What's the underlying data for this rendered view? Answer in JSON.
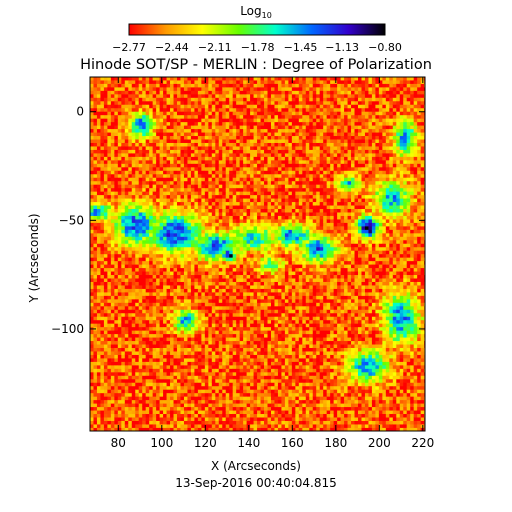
{
  "chart_data": {
    "type": "heatmap",
    "title": "Hinode SOT/SP - MERLIN : Degree of Polarization",
    "xlabel": "X (Arcseconds)",
    "ylabel": "Y (Arcseconds)",
    "footer": "13-Sep-2016 00:40:04.815",
    "xlim": [
      67,
      221
    ],
    "ylim": [
      -147,
      16
    ],
    "x_ticks": [
      80,
      100,
      120,
      140,
      160,
      180,
      200,
      220
    ],
    "x_tick_labels": [
      "80",
      "100",
      "120",
      "140",
      "160",
      "180",
      "200",
      "220"
    ],
    "y_ticks": [
      0,
      -50,
      -100
    ],
    "y_tick_labels": [
      "0",
      "-50",
      "-100"
    ],
    "colorbar": {
      "label_base": "Log",
      "label_sub": "10",
      "range": [
        -2.77,
        -0.8
      ],
      "tick_values": [
        -2.77,
        -2.44,
        -2.11,
        -1.78,
        -1.45,
        -1.13,
        -0.8
      ],
      "tick_labels": [
        "−2.77",
        "−2.44",
        "−2.11",
        "−1.78",
        "−1.45",
        "−1.13",
        "−0.80"
      ],
      "colors": [
        "#ff0000",
        "#ff9900",
        "#ffff00",
        "#66ff00",
        "#00ffcc",
        "#0066ff",
        "#3300cc",
        "#000000"
      ]
    },
    "background_level": -2.6,
    "features": [
      {
        "kind": "blob",
        "x": 91,
        "y": -6,
        "rx": 5,
        "ry": 5,
        "value": -1.2
      },
      {
        "kind": "blob",
        "x": 195,
        "y": -53,
        "rx": 5,
        "ry": 5,
        "value": -0.85
      },
      {
        "kind": "blob",
        "x": 131,
        "y": -66,
        "rx": 3,
        "ry": 3,
        "value": -0.95
      },
      {
        "kind": "band",
        "x": 70,
        "y": -46,
        "rx": 7,
        "ry": 4,
        "value": -1.4
      },
      {
        "kind": "band",
        "x": 88,
        "y": -52,
        "rx": 10,
        "ry": 9,
        "value": -1.3
      },
      {
        "kind": "band",
        "x": 106,
        "y": -56,
        "rx": 12,
        "ry": 9,
        "value": -1.25
      },
      {
        "kind": "band",
        "x": 125,
        "y": -62,
        "rx": 10,
        "ry": 6,
        "value": -1.25
      },
      {
        "kind": "band",
        "x": 142,
        "y": -58,
        "rx": 10,
        "ry": 6,
        "value": -1.6
      },
      {
        "kind": "band",
        "x": 160,
        "y": -57,
        "rx": 9,
        "ry": 5,
        "value": -1.35
      },
      {
        "kind": "band",
        "x": 172,
        "y": -63,
        "rx": 8,
        "ry": 6,
        "value": -1.3
      },
      {
        "kind": "band",
        "x": 206,
        "y": -40,
        "rx": 8,
        "ry": 8,
        "value": -1.5
      },
      {
        "kind": "band",
        "x": 212,
        "y": -12,
        "rx": 5,
        "ry": 8,
        "value": -1.4
      },
      {
        "kind": "band",
        "x": 111,
        "y": -96,
        "rx": 5,
        "ry": 5,
        "value": -1.45
      },
      {
        "kind": "band",
        "x": 210,
        "y": -95,
        "rx": 8,
        "ry": 11,
        "value": -1.35
      },
      {
        "kind": "band",
        "x": 195,
        "y": -117,
        "rx": 9,
        "ry": 7,
        "value": -1.4
      },
      {
        "kind": "band",
        "x": 150,
        "y": -70,
        "rx": 6,
        "ry": 4,
        "value": -1.9
      },
      {
        "kind": "band",
        "x": 186,
        "y": -33,
        "rx": 5,
        "ry": 3,
        "value": -1.5
      }
    ]
  }
}
